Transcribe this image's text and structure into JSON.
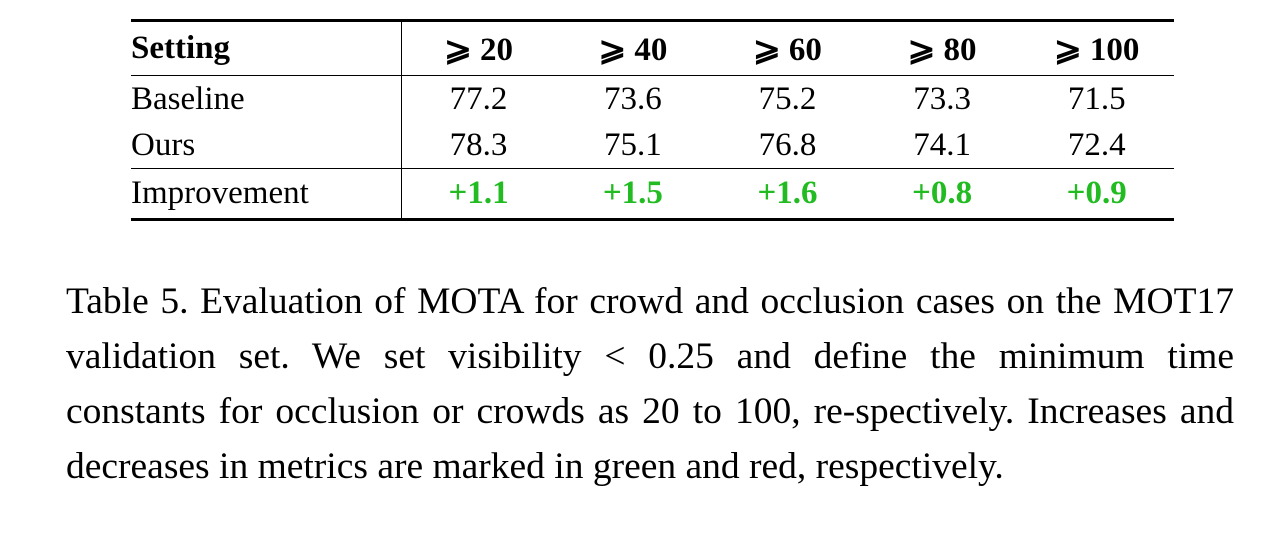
{
  "table": {
    "header": [
      "Setting",
      "⩾ 20",
      "⩾ 40",
      "⩾ 60",
      "⩾ 80",
      "⩾ 100"
    ],
    "rows": [
      {
        "label": "Baseline",
        "values": [
          "77.2",
          "73.6",
          "75.2",
          "73.3",
          "71.5"
        ]
      },
      {
        "label": "Ours",
        "values": [
          "78.3",
          "75.1",
          "76.8",
          "74.1",
          "72.4"
        ]
      }
    ],
    "improvement": {
      "label": "Improvement",
      "values": [
        "+1.1",
        "+1.5",
        "+1.6",
        "+0.8",
        "+0.9"
      ],
      "color": "#22bb22"
    }
  },
  "caption": "Table 5. Evaluation of MOTA for crowd and occlusion cases on the MOT17 validation set. We set visibility < 0.25 and define the minimum time constants for occlusion or crowds as 20 to 100, re-spectively. Increases and decreases in metrics are marked in green and red, respectively."
}
